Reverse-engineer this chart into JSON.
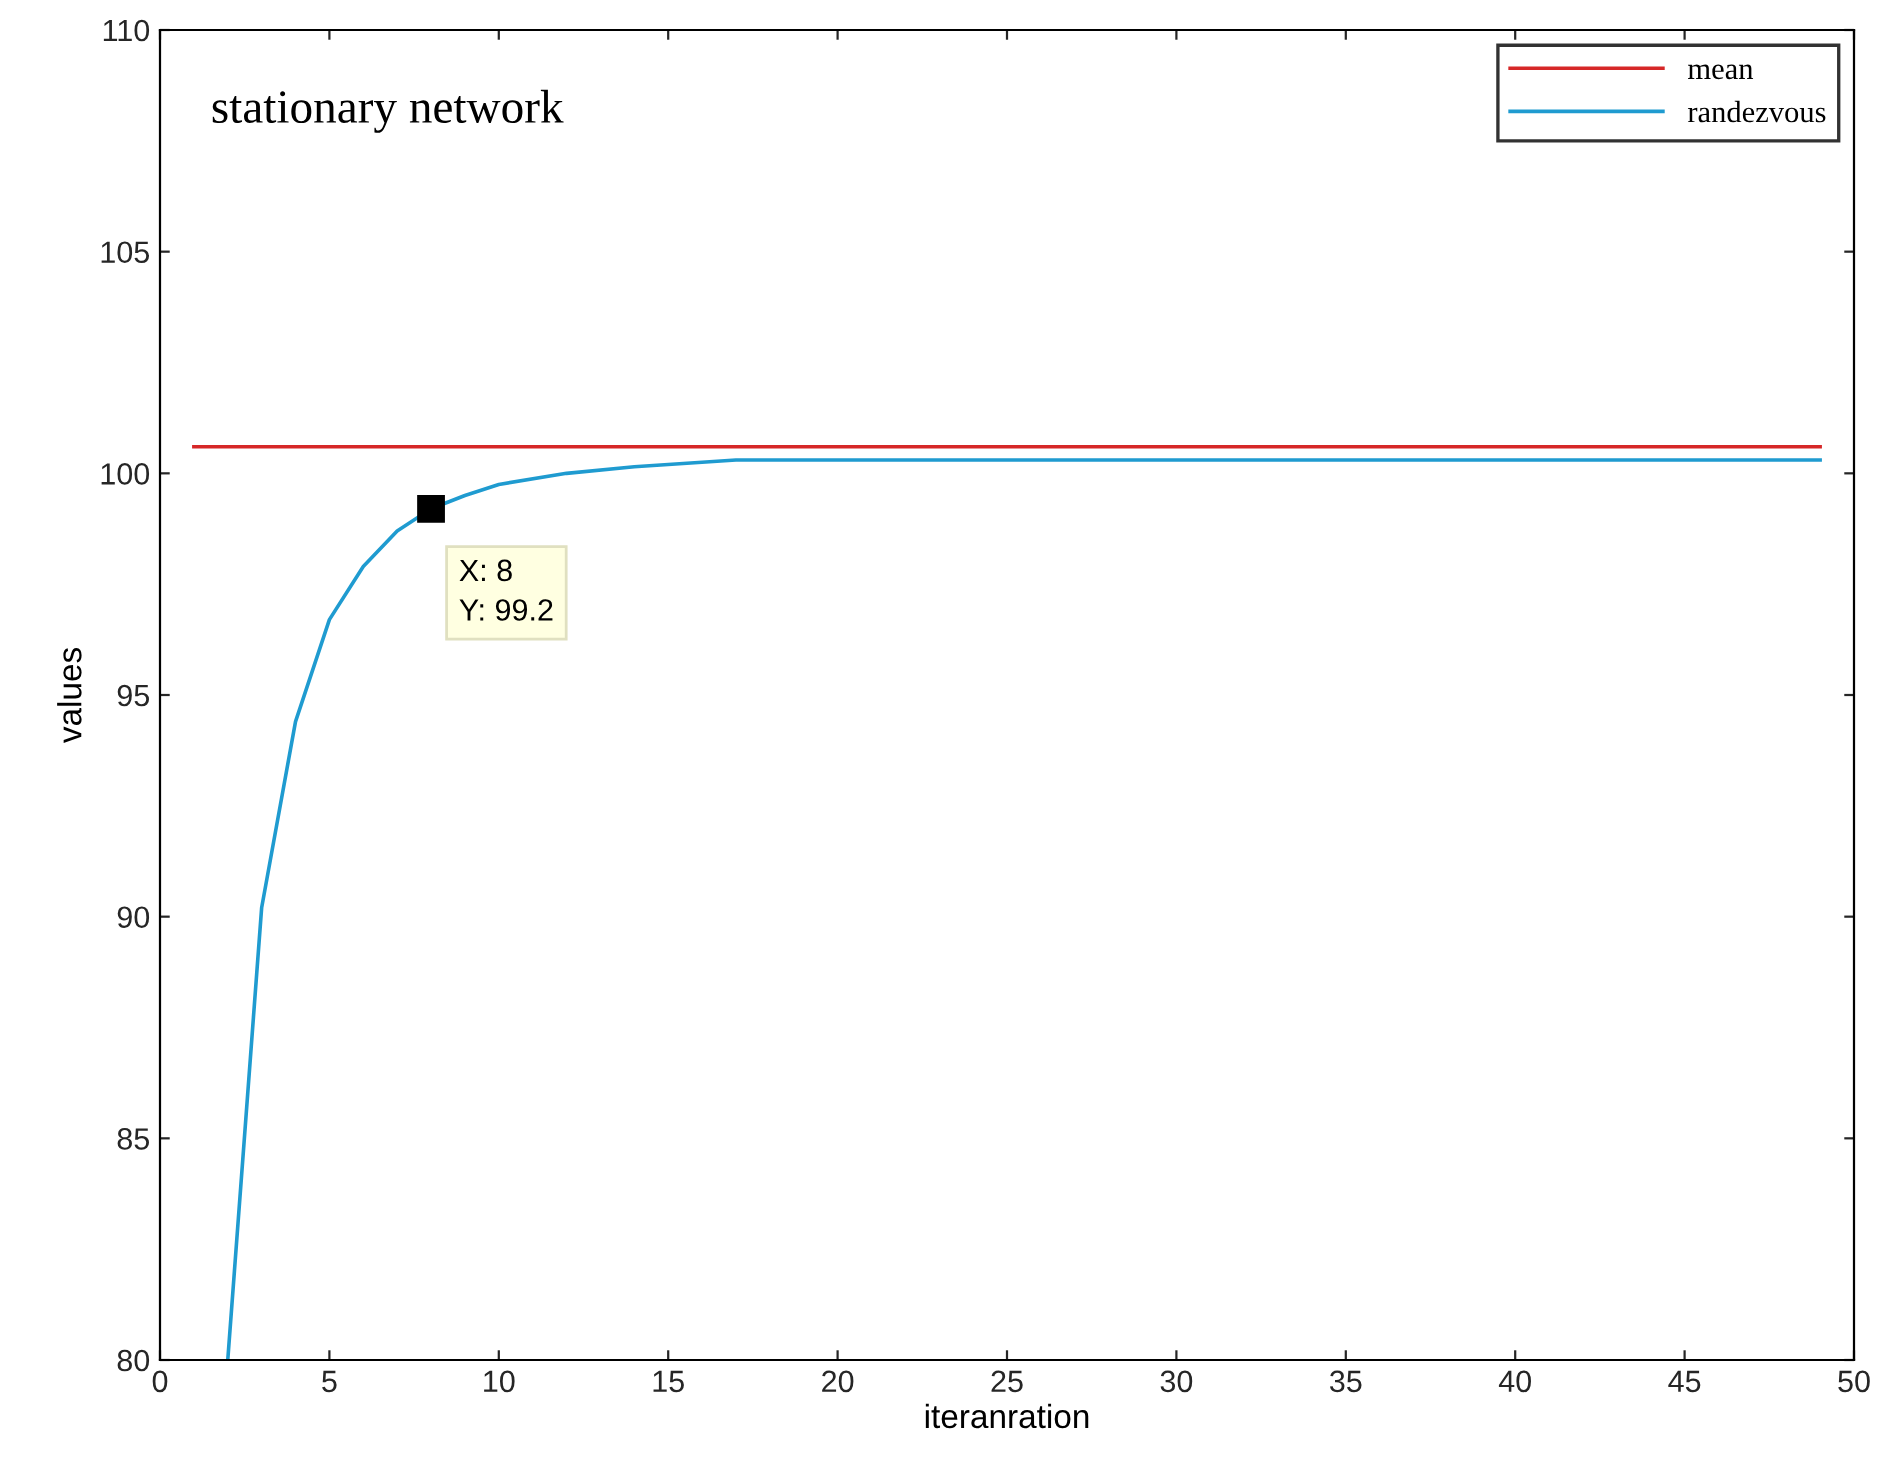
{
  "chart_data": {
    "type": "line",
    "title": "stationary network",
    "xlabel": "iteranration",
    "ylabel": "values",
    "xlim": [
      0,
      50
    ],
    "ylim": [
      80,
      110
    ],
    "xticks": [
      0,
      5,
      10,
      15,
      20,
      25,
      30,
      35,
      40,
      45,
      50
    ],
    "yticks": [
      80,
      85,
      90,
      95,
      100,
      105,
      110
    ],
    "grid": false,
    "legend": "top right",
    "marker": "none",
    "line_style": "solid",
    "series": [
      {
        "name": "mean",
        "color": "#d62728",
        "x": [
          1,
          49
        ],
        "values": [
          100.6,
          100.6
        ]
      },
      {
        "name": "randezvous",
        "color": "#1f9bd0",
        "x": [
          2,
          3,
          4,
          5,
          6,
          7,
          8,
          9,
          10,
          12,
          14,
          17,
          20,
          30,
          40,
          49
        ],
        "values": [
          80,
          90.2,
          94.4,
          96.7,
          97.9,
          98.7,
          99.2,
          99.5,
          99.75,
          100.0,
          100.15,
          100.3,
          100.3,
          100.3,
          100.3,
          100.3
        ]
      }
    ],
    "annotations": [
      {
        "text": "X: 8\nY: 99.2",
        "x": 8,
        "y": 99.2
      }
    ]
  }
}
